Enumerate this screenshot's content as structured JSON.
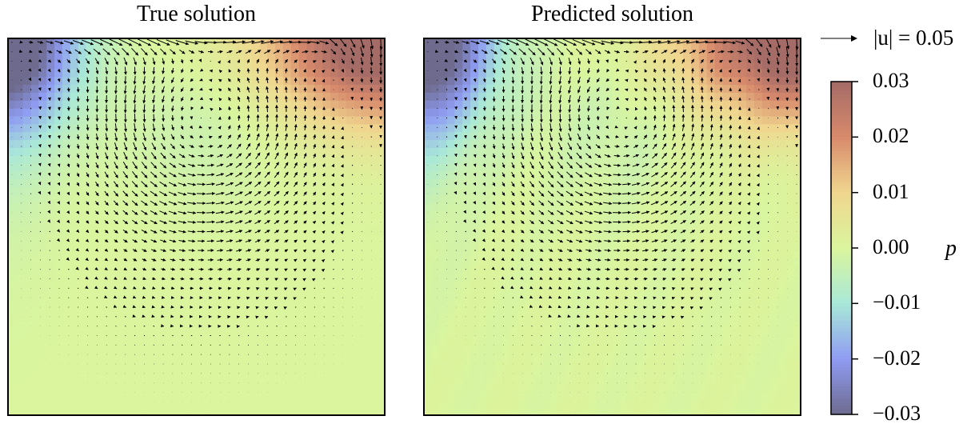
{
  "chart_data": {
    "type": "quiver-contourf",
    "description": "Lid-driven cavity flow: pressure field p shown as color with velocity vectors overlaid",
    "panels": [
      {
        "title": "True solution"
      },
      {
        "title": "Predicted solution"
      }
    ],
    "domain": {
      "x": [
        0,
        1
      ],
      "y": [
        0,
        1
      ]
    },
    "grid": {
      "nx": 40,
      "ny": 40
    },
    "lid_velocity": 1.0,
    "quiver_key": {
      "label": "|u| = 0.05",
      "value": 0.05
    },
    "colorbar": {
      "label": "p",
      "vmin": -0.03,
      "vmax": 0.03,
      "ticks": [
        0.03,
        0.02,
        0.01,
        0.0,
        -0.01,
        -0.02,
        -0.03
      ],
      "tick_labels": [
        "0.03",
        "0.02",
        "0.01",
        "0.00",
        "−0.01",
        "−0.02",
        "−0.03"
      ],
      "colormap": [
        "#6e6b8f",
        "#8f9cf3",
        "#a9e8d8",
        "#daf59d",
        "#f0d68f",
        "#d88a6c",
        "#a56b67"
      ]
    },
    "pressure_features": {
      "top_left_corner": -0.03,
      "top_right_corner": 0.03,
      "vortex_center": [
        0.52,
        0.78
      ],
      "background": 0.0
    }
  }
}
